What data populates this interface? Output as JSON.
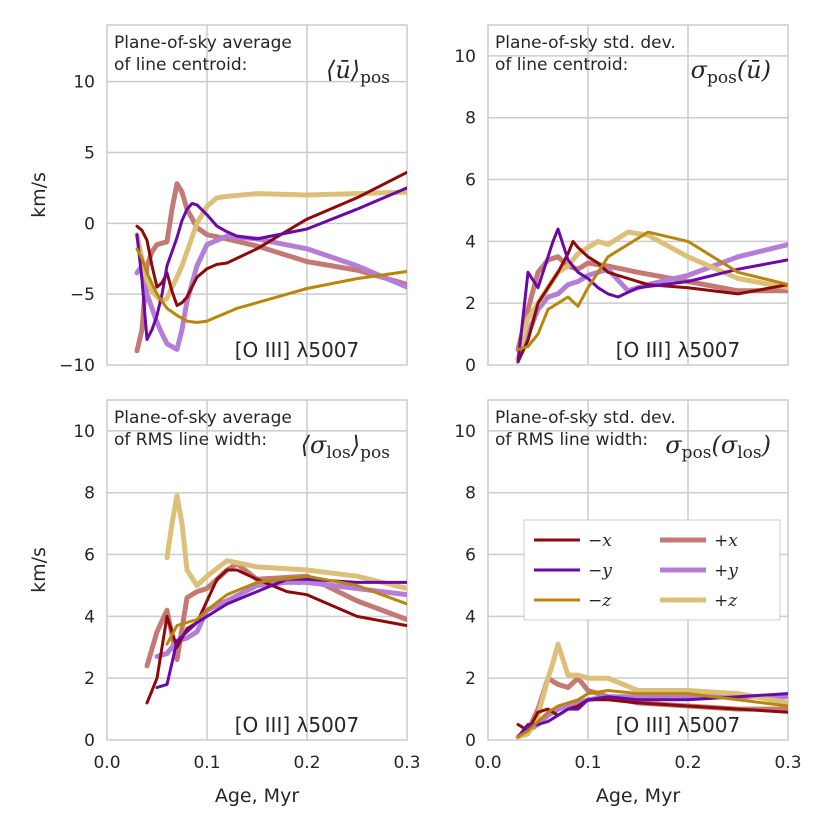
{
  "chart_data": [
    {
      "type": "line",
      "id": "p0",
      "title_line1": "Plane-of-sky average",
      "title_line2": "of line centroid:",
      "math_label": "⟨ū⟩pos",
      "annotation": "[O III] λ5007",
      "xlabel": "",
      "ylabel": "km/s",
      "xlim": [
        0.0,
        0.3
      ],
      "ylim": [
        -10,
        14
      ],
      "xticks": [
        0.0,
        0.1,
        0.2,
        0.3
      ],
      "xticklabels": [
        "",
        "",
        "",
        ""
      ],
      "yticks": [
        -10,
        -5,
        0,
        5,
        10
      ],
      "yticklabels": [
        "−10",
        "−5",
        "0",
        "5",
        "10"
      ],
      "grid": true,
      "series": [
        {
          "name": "+x",
          "x": [
            0.03,
            0.035,
            0.04,
            0.045,
            0.05,
            0.055,
            0.06,
            0.065,
            0.07,
            0.075,
            0.08,
            0.09,
            0.1,
            0.12,
            0.15,
            0.2,
            0.25,
            0.3
          ],
          "values": [
            -9.0,
            -7.5,
            -3.0,
            -2.0,
            -1.5,
            -1.4,
            -1.3,
            1.0,
            2.8,
            2.2,
            1.0,
            -0.3,
            -0.8,
            -1.1,
            -1.6,
            -2.7,
            -3.3,
            -4.3
          ]
        },
        {
          "name": "+y",
          "x": [
            0.03,
            0.035,
            0.04,
            0.045,
            0.05,
            0.055,
            0.06,
            0.065,
            0.07,
            0.075,
            0.08,
            0.09,
            0.1,
            0.12,
            0.15,
            0.2,
            0.25,
            0.3
          ],
          "values": [
            -3.5,
            -3.0,
            -5.0,
            -6.0,
            -7.0,
            -7.8,
            -8.5,
            -8.7,
            -8.9,
            -7.5,
            -5.5,
            -3.0,
            -1.5,
            -0.9,
            -1.1,
            -1.8,
            -3.0,
            -4.5
          ]
        },
        {
          "name": "+z",
          "x": [
            0.03,
            0.035,
            0.04,
            0.045,
            0.05,
            0.055,
            0.06,
            0.065,
            0.07,
            0.075,
            0.08,
            0.09,
            0.1,
            0.11,
            0.12,
            0.15,
            0.2,
            0.25,
            0.3
          ],
          "values": [
            -0.8,
            -2.5,
            -4.0,
            -4.8,
            -5.2,
            -5.5,
            -5.3,
            -4.5,
            -3.8,
            -3.0,
            -2.0,
            0.0,
            1.2,
            1.8,
            1.9,
            2.1,
            2.0,
            2.1,
            2.2
          ]
        },
        {
          "name": "−x",
          "x": [
            0.03,
            0.035,
            0.04,
            0.045,
            0.05,
            0.055,
            0.06,
            0.065,
            0.07,
            0.075,
            0.08,
            0.085,
            0.09,
            0.1,
            0.11,
            0.12,
            0.15,
            0.2,
            0.25,
            0.3
          ],
          "values": [
            -0.2,
            -0.5,
            -1.2,
            -3.0,
            -4.5,
            -4.2,
            -3.5,
            -4.8,
            -5.8,
            -5.6,
            -5.2,
            -4.5,
            -3.8,
            -3.2,
            -2.9,
            -2.8,
            -1.8,
            0.3,
            1.8,
            3.6
          ]
        },
        {
          "name": "−y",
          "x": [
            0.03,
            0.035,
            0.04,
            0.045,
            0.05,
            0.055,
            0.06,
            0.065,
            0.07,
            0.075,
            0.08,
            0.085,
            0.09,
            0.1,
            0.11,
            0.12,
            0.13,
            0.15,
            0.2,
            0.25,
            0.3
          ],
          "values": [
            -0.8,
            -4.0,
            -8.2,
            -7.5,
            -6.5,
            -5.0,
            -3.0,
            -2.0,
            -1.0,
            0.2,
            1.0,
            1.4,
            1.3,
            0.6,
            -0.2,
            -0.6,
            -0.9,
            -1.1,
            -0.4,
            1.0,
            2.5
          ]
        },
        {
          "name": "−z",
          "x": [
            0.03,
            0.035,
            0.04,
            0.05,
            0.06,
            0.07,
            0.08,
            0.09,
            0.1,
            0.11,
            0.12,
            0.13,
            0.15,
            0.18,
            0.2,
            0.25,
            0.3
          ],
          "values": [
            -1.8,
            -2.5,
            -3.5,
            -5.0,
            -6.0,
            -6.5,
            -6.9,
            -7.0,
            -6.9,
            -6.6,
            -6.3,
            -6.0,
            -5.6,
            -5.0,
            -4.6,
            -3.9,
            -3.4
          ]
        }
      ]
    },
    {
      "type": "line",
      "id": "p1",
      "title_line1": "Plane-of-sky std. dev.",
      "title_line2": "of line centroid:",
      "math_label": "σpos(ū)",
      "annotation": "[O III] λ5007",
      "xlabel": "",
      "ylabel": "",
      "xlim": [
        0.0,
        0.3
      ],
      "ylim": [
        0,
        11
      ],
      "xticks": [
        0.0,
        0.1,
        0.2,
        0.3
      ],
      "xticklabels": [
        "",
        "",
        "",
        ""
      ],
      "yticks": [
        0,
        2,
        4,
        6,
        8,
        10
      ],
      "yticklabels": [
        "0",
        "2",
        "4",
        "6",
        "8",
        "10"
      ],
      "grid": true,
      "series": [
        {
          "name": "+x",
          "x": [
            0.03,
            0.04,
            0.05,
            0.06,
            0.07,
            0.08,
            0.09,
            0.1,
            0.12,
            0.15,
            0.2,
            0.25,
            0.3
          ],
          "values": [
            0.5,
            1.8,
            3.0,
            3.4,
            3.5,
            3.2,
            3.1,
            3.3,
            3.2,
            3.0,
            2.7,
            2.4,
            2.4
          ]
        },
        {
          "name": "+y",
          "x": [
            0.03,
            0.04,
            0.05,
            0.06,
            0.07,
            0.08,
            0.09,
            0.1,
            0.12,
            0.14,
            0.16,
            0.2,
            0.25,
            0.3
          ],
          "values": [
            0.2,
            1.0,
            1.8,
            2.2,
            2.3,
            2.6,
            2.7,
            2.9,
            3.1,
            2.4,
            2.6,
            2.9,
            3.5,
            3.9
          ]
        },
        {
          "name": "+z",
          "x": [
            0.03,
            0.04,
            0.05,
            0.06,
            0.07,
            0.08,
            0.09,
            0.1,
            0.11,
            0.12,
            0.14,
            0.16,
            0.2,
            0.25,
            0.3
          ],
          "values": [
            0.2,
            1.5,
            2.0,
            2.5,
            3.0,
            3.2,
            3.6,
            3.8,
            4.0,
            3.9,
            4.3,
            4.2,
            3.5,
            2.8,
            2.5
          ]
        },
        {
          "name": "−x",
          "x": [
            0.03,
            0.04,
            0.05,
            0.06,
            0.07,
            0.08,
            0.085,
            0.09,
            0.1,
            0.11,
            0.12,
            0.14,
            0.16,
            0.2,
            0.25,
            0.3
          ],
          "values": [
            0.1,
            0.8,
            2.0,
            2.5,
            3.0,
            3.6,
            4.0,
            3.8,
            3.5,
            3.3,
            3.0,
            2.8,
            2.6,
            2.5,
            2.3,
            2.6
          ]
        },
        {
          "name": "−y",
          "x": [
            0.03,
            0.04,
            0.05,
            0.06,
            0.065,
            0.07,
            0.08,
            0.09,
            0.1,
            0.11,
            0.12,
            0.13,
            0.15,
            0.2,
            0.25,
            0.3
          ],
          "values": [
            0.1,
            3.0,
            2.5,
            3.5,
            4.0,
            4.4,
            3.4,
            3.0,
            2.8,
            2.5,
            2.3,
            2.2,
            2.5,
            2.7,
            3.1,
            3.4
          ]
        },
        {
          "name": "−z",
          "x": [
            0.03,
            0.04,
            0.05,
            0.06,
            0.07,
            0.08,
            0.09,
            0.1,
            0.11,
            0.12,
            0.14,
            0.16,
            0.2,
            0.25,
            0.3
          ],
          "values": [
            0.5,
            0.6,
            1.0,
            1.8,
            2.0,
            2.2,
            1.9,
            2.5,
            3.0,
            3.5,
            3.9,
            4.3,
            4.0,
            3.0,
            2.6
          ]
        }
      ]
    },
    {
      "type": "line",
      "id": "p2",
      "title_line1": "Plane-of-sky average",
      "title_line2": "of RMS line width:",
      "math_label": "⟨σlos⟩pos",
      "annotation": "[O III] λ5007",
      "xlabel": "Age, Myr",
      "ylabel": "km/s",
      "xlim": [
        0.0,
        0.3
      ],
      "ylim": [
        0,
        11
      ],
      "xticks": [
        0.0,
        0.1,
        0.2,
        0.3
      ],
      "xticklabels": [
        "0.0",
        "0.1",
        "0.2",
        "0.3"
      ],
      "yticks": [
        0,
        2,
        4,
        6,
        8,
        10
      ],
      "yticklabels": [
        "0",
        "2",
        "4",
        "6",
        "8",
        "10"
      ],
      "grid": true,
      "series": [
        {
          "name": "+x",
          "x": [
            0.04,
            0.05,
            0.06,
            0.07,
            0.08,
            0.09,
            0.1,
            0.12,
            0.13,
            0.15,
            0.2,
            0.25,
            0.3
          ],
          "values": [
            2.4,
            3.5,
            4.2,
            2.6,
            4.6,
            4.8,
            4.9,
            5.5,
            5.7,
            5.2,
            5.3,
            4.5,
            3.9
          ]
        },
        {
          "name": "+y",
          "x": [
            0.05,
            0.06,
            0.07,
            0.08,
            0.09,
            0.1,
            0.12,
            0.15,
            0.18,
            0.2,
            0.25,
            0.3
          ],
          "values": [
            2.7,
            2.8,
            3.2,
            3.3,
            3.5,
            4.2,
            4.5,
            5.0,
            5.1,
            5.1,
            4.9,
            4.7
          ]
        },
        {
          "name": "+z",
          "x": [
            0.06,
            0.065,
            0.07,
            0.075,
            0.08,
            0.09,
            0.1,
            0.12,
            0.15,
            0.2,
            0.25,
            0.3
          ],
          "values": [
            5.9,
            7.0,
            7.9,
            7.0,
            5.5,
            5.0,
            5.3,
            5.8,
            5.6,
            5.5,
            5.3,
            4.9
          ]
        },
        {
          "name": "−x",
          "x": [
            0.04,
            0.05,
            0.06,
            0.07,
            0.08,
            0.09,
            0.1,
            0.11,
            0.12,
            0.13,
            0.15,
            0.18,
            0.2,
            0.25,
            0.3
          ],
          "values": [
            1.2,
            2.0,
            4.0,
            3.0,
            3.6,
            3.8,
            4.5,
            5.2,
            5.5,
            5.5,
            5.2,
            4.8,
            4.7,
            4.0,
            3.7
          ]
        },
        {
          "name": "−y",
          "x": [
            0.05,
            0.06,
            0.07,
            0.08,
            0.09,
            0.1,
            0.12,
            0.15,
            0.18,
            0.2,
            0.25,
            0.3
          ],
          "values": [
            1.7,
            1.8,
            3.2,
            3.5,
            3.8,
            4.0,
            4.4,
            4.8,
            5.2,
            5.2,
            5.1,
            5.1
          ]
        },
        {
          "name": "−z",
          "x": [
            0.06,
            0.07,
            0.08,
            0.09,
            0.1,
            0.12,
            0.15,
            0.2,
            0.25,
            0.3
          ],
          "values": [
            3.1,
            3.7,
            3.8,
            3.9,
            4.2,
            4.7,
            5.1,
            5.3,
            5.0,
            4.4
          ]
        }
      ]
    },
    {
      "type": "line",
      "id": "p3",
      "title_line1": "Plane-of-sky std. dev.",
      "title_line2": "of RMS line width:",
      "math_label": "σpos(σlos)",
      "annotation": "[O III] λ5007",
      "xlabel": "Age, Myr",
      "ylabel": "",
      "xlim": [
        0.0,
        0.3
      ],
      "ylim": [
        0,
        11
      ],
      "xticks": [
        0.0,
        0.1,
        0.2,
        0.3
      ],
      "xticklabels": [
        "0.0",
        "0.1",
        "0.2",
        "0.3"
      ],
      "yticks": [
        0,
        2,
        4,
        6,
        8,
        10
      ],
      "yticklabels": [
        "0",
        "2",
        "4",
        "6",
        "8",
        "10"
      ],
      "grid": true,
      "legend": {
        "location": "center-right",
        "ncol": 2,
        "entries": [
          "−x",
          "+x",
          "−y",
          "+y",
          "−z",
          "+z"
        ]
      },
      "series": [
        {
          "name": "+x",
          "x": [
            0.03,
            0.04,
            0.05,
            0.06,
            0.07,
            0.08,
            0.09,
            0.1,
            0.12,
            0.15,
            0.2,
            0.25,
            0.3
          ],
          "values": [
            0.1,
            0.3,
            1.0,
            2.0,
            1.8,
            1.7,
            2.0,
            1.6,
            1.4,
            1.2,
            1.1,
            1.0,
            1.0
          ]
        },
        {
          "name": "+y",
          "x": [
            0.03,
            0.04,
            0.05,
            0.06,
            0.07,
            0.08,
            0.09,
            0.1,
            0.12,
            0.15,
            0.2,
            0.25,
            0.3
          ],
          "values": [
            0.1,
            0.3,
            0.5,
            0.8,
            1.0,
            1.1,
            1.2,
            1.3,
            1.4,
            1.4,
            1.4,
            1.4,
            1.4
          ]
        },
        {
          "name": "+z",
          "x": [
            0.03,
            0.04,
            0.05,
            0.06,
            0.065,
            0.07,
            0.075,
            0.08,
            0.09,
            0.1,
            0.12,
            0.15,
            0.2,
            0.25,
            0.3
          ],
          "values": [
            0.1,
            0.2,
            0.8,
            2.0,
            2.5,
            3.1,
            2.6,
            2.1,
            2.1,
            2.0,
            2.0,
            1.6,
            1.6,
            1.5,
            1.2
          ]
        },
        {
          "name": "−x",
          "x": [
            0.03,
            0.04,
            0.05,
            0.06,
            0.07,
            0.08,
            0.09,
            0.1,
            0.12,
            0.15,
            0.2,
            0.25,
            0.3
          ],
          "values": [
            0.5,
            0.3,
            0.9,
            1.0,
            0.8,
            1.0,
            1.1,
            1.3,
            1.3,
            1.2,
            1.1,
            1.0,
            0.9
          ]
        },
        {
          "name": "−y",
          "x": [
            0.03,
            0.04,
            0.05,
            0.06,
            0.07,
            0.08,
            0.09,
            0.1,
            0.12,
            0.15,
            0.2,
            0.25,
            0.3
          ],
          "values": [
            0.1,
            0.5,
            0.5,
            0.6,
            0.8,
            1.0,
            1.0,
            1.3,
            1.4,
            1.3,
            1.3,
            1.4,
            1.5
          ]
        },
        {
          "name": "−z",
          "x": [
            0.03,
            0.04,
            0.05,
            0.06,
            0.07,
            0.08,
            0.09,
            0.1,
            0.12,
            0.15,
            0.2,
            0.25,
            0.3
          ],
          "values": [
            0.1,
            0.3,
            0.6,
            0.9,
            1.1,
            1.2,
            1.3,
            1.5,
            1.6,
            1.5,
            1.5,
            1.3,
            1.1
          ]
        }
      ]
    }
  ],
  "colors": {
    "−x": "#8b0a0a",
    "−y": "#6a0aa6",
    "−z": "#b8860b",
    "+x": "#c47a74",
    "+y": "#b47ed6",
    "+z": "#dcc07a"
  }
}
